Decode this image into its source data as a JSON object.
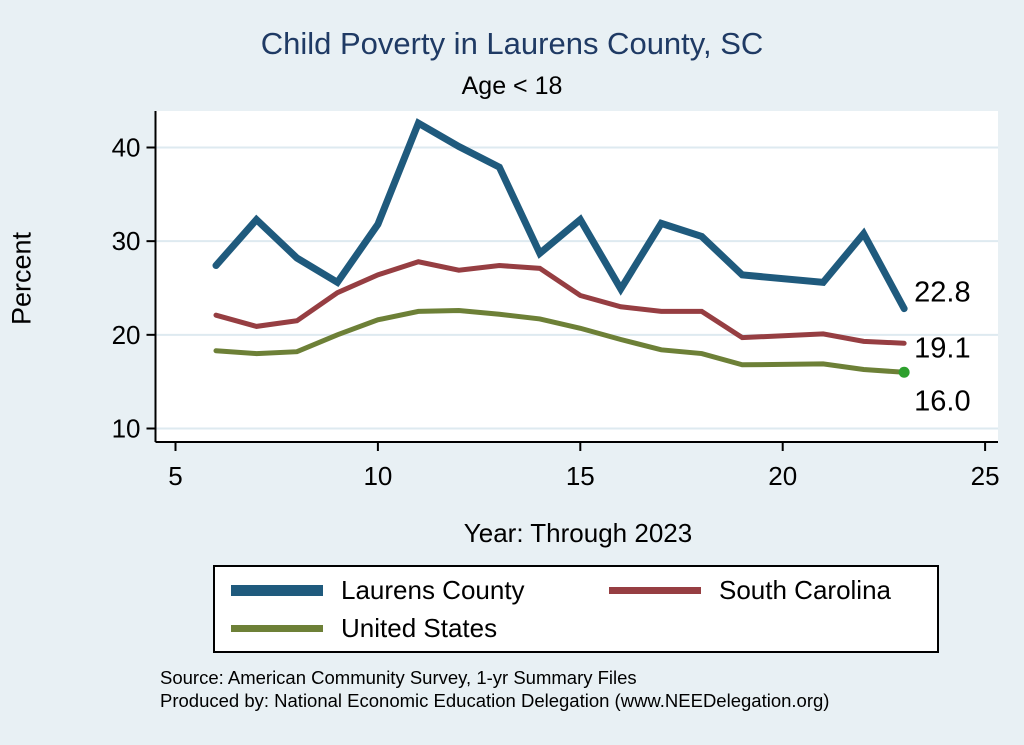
{
  "page": {
    "title": "Child Poverty in Laurens County, SC",
    "subtitle": "Age < 18"
  },
  "chart_data": {
    "type": "line",
    "title": "Child Poverty in Laurens County, SC",
    "subtitle": "Age < 18",
    "xlabel": "Year: Through 2023",
    "ylabel": "Percent",
    "x_ticks": [
      5,
      10,
      15,
      20,
      25
    ],
    "y_ticks": [
      10,
      20,
      30,
      40
    ],
    "xlim": [
      4.5,
      25.3
    ],
    "ylim": [
      8,
      44
    ],
    "grid": "horizontal",
    "legend_position": "bottom",
    "x_values": [
      6,
      7,
      8,
      9,
      10,
      11,
      12,
      13,
      14,
      15,
      16,
      17,
      18,
      19,
      21,
      22,
      23
    ],
    "series": [
      {
        "name": "Laurens County",
        "color": "#1f5a7d",
        "line_width": 7,
        "values": [
          27.4,
          32.3,
          28.2,
          25.6,
          31.8,
          42.6,
          40.1,
          37.9,
          28.7,
          32.3,
          24.9,
          31.9,
          30.5,
          26.4,
          25.6,
          30.8,
          22.8
        ],
        "end_label": "22.8"
      },
      {
        "name": "South Carolina",
        "color": "#963e42",
        "line_width": 5,
        "values": [
          22.1,
          20.9,
          21.5,
          24.5,
          26.4,
          27.8,
          26.9,
          27.4,
          27.1,
          24.2,
          23.0,
          22.5,
          22.5,
          19.7,
          20.1,
          19.3,
          19.1
        ],
        "end_label": "19.1"
      },
      {
        "name": "United States",
        "color": "#6d8037",
        "line_width": 5,
        "values": [
          18.3,
          18.0,
          18.2,
          20.0,
          21.6,
          22.5,
          22.6,
          22.2,
          21.7,
          20.7,
          19.5,
          18.4,
          18.0,
          16.8,
          16.9,
          16.3,
          16.0
        ],
        "end_label": "16.0",
        "end_marker_color": "#2da02d"
      }
    ]
  },
  "colors": {
    "background": "#e8f0f4",
    "plot_background": "#ffffff",
    "grid": "#deeaf0",
    "axis": "#000000",
    "title": "#1f3a64"
  },
  "footer": {
    "source": "Source: American Community Survey, 1-yr Summary Files",
    "produced_by": "Produced by: National Economic Education Delegation (www.NEEDelegation.org)"
  }
}
